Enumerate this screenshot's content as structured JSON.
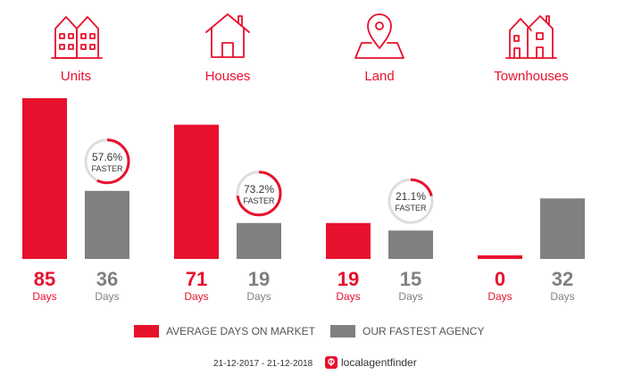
{
  "colors": {
    "market": "#e8112d",
    "agency": "#808080",
    "badge_ring_bg": "#dddddd"
  },
  "icons": [
    "units-icon",
    "house-icon",
    "land-pin-icon",
    "townhouses-icon"
  ],
  "unit_text": "Days",
  "badge_word": "FASTER",
  "legend": {
    "market": "AVERAGE DAYS ON MARKET",
    "agency": "OUR FASTEST AGENCY"
  },
  "footer": {
    "date_range": "21-12-2017 - 21-12-2018",
    "brand": "localagentfinder"
  },
  "chart_data": {
    "type": "bar",
    "categories": [
      "Units",
      "Houses",
      "Land",
      "Townhouses"
    ],
    "series": [
      {
        "name": "AVERAGE DAYS ON MARKET",
        "values": [
          85,
          71,
          19,
          0
        ]
      },
      {
        "name": "OUR FASTEST AGENCY",
        "values": [
          36,
          19,
          15,
          32
        ]
      }
    ],
    "faster_pct": [
      "57.6%",
      "73.2%",
      "21.1%",
      null
    ],
    "ylim": [
      0,
      85
    ]
  }
}
